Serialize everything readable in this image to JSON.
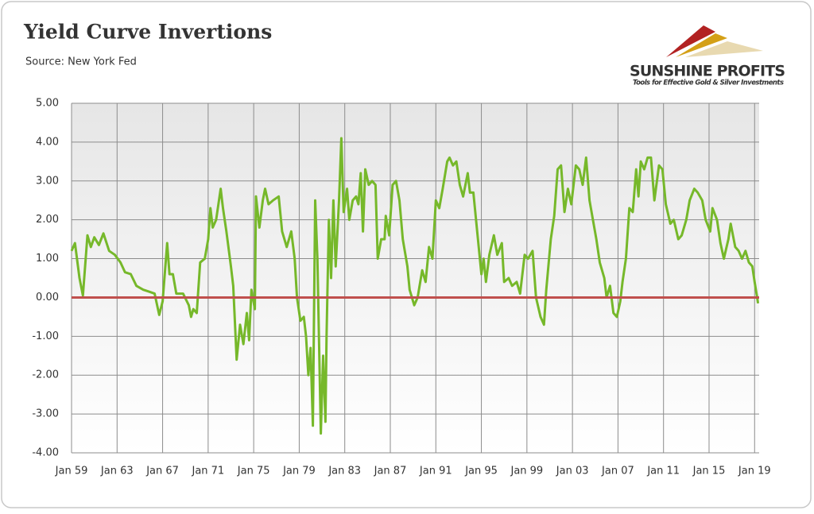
{
  "chart_data": {
    "type": "line",
    "title": "Yield Curve Invertions",
    "subtitle": "Source: New York Fed",
    "logo": {
      "name": "SUNSHINE PROFITS",
      "tagline": "Tools for Effective Gold & Silver Investments"
    },
    "x": [
      1959.0,
      1959.3,
      1959.7,
      1960.0,
      1960.4,
      1960.7,
      1961.0,
      1961.4,
      1961.8,
      1962.3,
      1962.8,
      1963.3,
      1963.7,
      1964.2,
      1964.7,
      1965.3,
      1965.8,
      1966.3,
      1966.7,
      1967.0,
      1967.4,
      1967.6,
      1967.9,
      1968.2,
      1968.8,
      1969.3,
      1969.5,
      1969.7,
      1970.0,
      1970.3,
      1970.7,
      1971.0,
      1971.2,
      1971.4,
      1971.7,
      1972.1,
      1972.3,
      1972.6,
      1973.0,
      1973.2,
      1973.5,
      1973.8,
      1974.1,
      1974.4,
      1974.6,
      1974.8,
      1975.1,
      1975.2,
      1975.5,
      1975.8,
      1976.0,
      1976.3,
      1976.7,
      1977.2,
      1977.5,
      1977.9,
      1978.3,
      1978.6,
      1978.8,
      1979.1,
      1979.4,
      1979.6,
      1979.8,
      1980.0,
      1980.2,
      1980.3,
      1980.4,
      1980.6,
      1980.9,
      1981.1,
      1981.3,
      1981.4,
      1981.6,
      1981.8,
      1982.0,
      1982.2,
      1982.5,
      1982.7,
      1982.9,
      1983.2,
      1983.4,
      1983.7,
      1984.0,
      1984.2,
      1984.4,
      1984.6,
      1984.8,
      1985.1,
      1985.4,
      1985.7,
      1985.9,
      1986.2,
      1986.5,
      1986.6,
      1986.9,
      1987.2,
      1987.5,
      1987.8,
      1988.1,
      1988.5,
      1988.7,
      1989.1,
      1989.4,
      1989.8,
      1990.1,
      1990.4,
      1990.7,
      1991.0,
      1991.3,
      1991.6,
      1992.0,
      1992.2,
      1992.5,
      1992.8,
      1993.1,
      1993.4,
      1993.8,
      1994.0,
      1994.3,
      1994.6,
      1995.0,
      1995.2,
      1995.4,
      1995.7,
      1996.1,
      1996.4,
      1996.8,
      1997.0,
      1997.4,
      1997.7,
      1998.1,
      1998.4,
      1998.8,
      1999.1,
      1999.5,
      1999.8,
      2000.2,
      2000.5,
      2000.7,
      2001.1,
      2001.4,
      2001.7,
      2002.0,
      2002.3,
      2002.6,
      2002.9,
      2003.3,
      2003.6,
      2003.9,
      2004.2,
      2004.5,
      2004.8,
      2005.1,
      2005.4,
      2005.8,
      2006.0,
      2006.3,
      2006.6,
      2006.9,
      2007.2,
      2007.4,
      2007.7,
      2008.0,
      2008.3,
      2008.6,
      2008.8,
      2009.0,
      2009.3,
      2009.6,
      2009.9,
      2010.2,
      2010.6,
      2010.9,
      2011.2,
      2011.6,
      2011.9,
      2012.3,
      2012.6,
      2013.0,
      2013.3,
      2013.7,
      2014.0,
      2014.4,
      2014.7,
      2015.1,
      2015.3,
      2015.7,
      2016.0,
      2016.3,
      2016.7,
      2016.9,
      2017.3,
      2017.6,
      2017.9,
      2018.2,
      2018.5,
      2018.8,
      2019.0,
      2019.2,
      2019.3
    ],
    "series": [
      {
        "color": "#76b82a",
        "values": [
          1.2,
          1.4,
          0.5,
          0.05,
          1.6,
          1.3,
          1.55,
          1.35,
          1.65,
          1.2,
          1.1,
          0.9,
          0.65,
          0.6,
          0.3,
          0.2,
          0.15,
          0.1,
          -0.45,
          -0.1,
          1.4,
          0.6,
          0.6,
          0.1,
          0.1,
          -0.2,
          -0.5,
          -0.3,
          -0.4,
          0.9,
          1.0,
          1.5,
          2.3,
          1.8,
          2.0,
          2.8,
          2.3,
          1.7,
          0.8,
          0.3,
          -1.6,
          -0.7,
          -1.2,
          -0.4,
          -1.1,
          0.2,
          -0.3,
          2.6,
          1.8,
          2.5,
          2.8,
          2.4,
          2.5,
          2.6,
          1.7,
          1.3,
          1.7,
          1.0,
          0.0,
          -0.6,
          -0.5,
          -1.0,
          -2.0,
          -1.3,
          -3.3,
          -0.5,
          2.5,
          1.0,
          -3.5,
          -1.5,
          -3.2,
          -1.0,
          2.0,
          0.5,
          2.5,
          0.8,
          2.5,
          4.1,
          2.2,
          2.8,
          2.0,
          2.5,
          2.6,
          2.4,
          3.2,
          1.7,
          3.3,
          2.9,
          3.0,
          2.9,
          1.0,
          1.5,
          1.5,
          2.1,
          1.6,
          2.9,
          3.0,
          2.5,
          1.5,
          0.8,
          0.2,
          -0.2,
          0.0,
          0.7,
          0.4,
          1.3,
          1.0,
          2.5,
          2.3,
          2.8,
          3.5,
          3.6,
          3.4,
          3.5,
          2.9,
          2.6,
          3.2,
          2.7,
          2.7,
          1.8,
          0.6,
          1.0,
          0.4,
          1.1,
          1.6,
          1.1,
          1.4,
          0.4,
          0.5,
          0.3,
          0.4,
          0.1,
          1.1,
          1.0,
          1.2,
          0.0,
          -0.5,
          -0.7,
          0.2,
          1.5,
          2.1,
          3.3,
          3.4,
          2.2,
          2.8,
          2.4,
          3.4,
          3.3,
          2.9,
          3.6,
          2.5,
          2.0,
          1.5,
          0.9,
          0.5,
          0.0,
          0.3,
          -0.4,
          -0.5,
          -0.1,
          0.4,
          1.0,
          2.3,
          2.2,
          3.3,
          2.6,
          3.5,
          3.3,
          3.6,
          3.6,
          2.5,
          3.4,
          3.3,
          2.4,
          1.9,
          2.0,
          1.5,
          1.6,
          2.0,
          2.5,
          2.8,
          2.7,
          2.5,
          2.0,
          1.7,
          2.3,
          2.0,
          1.4,
          1.0,
          1.5,
          1.9,
          1.3,
          1.2,
          1.0,
          1.2,
          0.9,
          0.8,
          0.4,
          0.05,
          -0.15
        ]
      }
    ],
    "zero_line": {
      "value": 0,
      "color": "#c0504d"
    },
    "xlim": [
      1959,
      2019.4
    ],
    "xticks": [
      {
        "value": 1959,
        "label": "Jan 59"
      },
      {
        "value": 1963,
        "label": "Jan 63"
      },
      {
        "value": 1967,
        "label": "Jan 67"
      },
      {
        "value": 1971,
        "label": "Jan 71"
      },
      {
        "value": 1975,
        "label": "Jan 75"
      },
      {
        "value": 1979,
        "label": "Jan 79"
      },
      {
        "value": 1983,
        "label": "Jan 83"
      },
      {
        "value": 1987,
        "label": "Jan 87"
      },
      {
        "value": 1991,
        "label": "Jan 91"
      },
      {
        "value": 1995,
        "label": "Jan 95"
      },
      {
        "value": 1999,
        "label": "Jan 99"
      },
      {
        "value": 2003,
        "label": "Jan 03"
      },
      {
        "value": 2007,
        "label": "Jan 07"
      },
      {
        "value": 2011,
        "label": "Jan 11"
      },
      {
        "value": 2015,
        "label": "Jan 15"
      },
      {
        "value": 2019,
        "label": "Jan 19"
      }
    ],
    "ylim": [
      -4,
      5
    ],
    "yticks": [
      {
        "value": 5,
        "label": "5.00"
      },
      {
        "value": 4,
        "label": "4.00"
      },
      {
        "value": 3,
        "label": "3.00"
      },
      {
        "value": 2,
        "label": "2.00"
      },
      {
        "value": 1,
        "label": "1.00"
      },
      {
        "value": 0,
        "label": "0.00"
      },
      {
        "value": -1,
        "label": "-1.00"
      },
      {
        "value": -2,
        "label": "-2.00"
      },
      {
        "value": -3,
        "label": "-3.00"
      },
      {
        "value": -4,
        "label": "-4.00"
      }
    ],
    "grid": true
  }
}
